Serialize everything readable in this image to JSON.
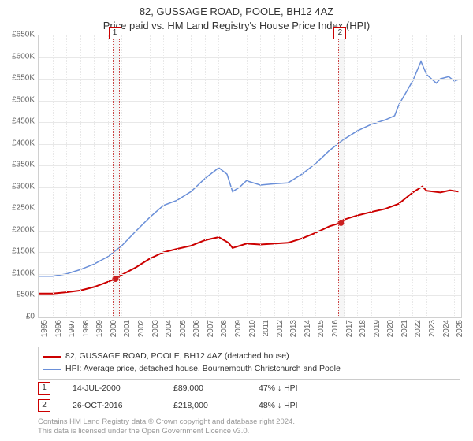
{
  "title_line1": "82, GUSSAGE ROAD, POOLE, BH12 4AZ",
  "title_line2": "Price paid vs. HM Land Registry's House Price Index (HPI)",
  "chart": {
    "type": "line",
    "background_color": "#ffffff",
    "grid_color": "#e8e8e8",
    "border_color": "#d0d0d0",
    "x": {
      "min": 1995,
      "max": 2025.5,
      "ticks": [
        1995,
        1996,
        1997,
        1998,
        1999,
        2000,
        2001,
        2002,
        2003,
        2004,
        2005,
        2006,
        2007,
        2008,
        2009,
        2010,
        2011,
        2012,
        2013,
        2014,
        2015,
        2016,
        2017,
        2018,
        2019,
        2020,
        2021,
        2022,
        2023,
        2024,
        2025
      ],
      "label_fontsize": 10,
      "label_color": "#666666",
      "label_rotation": -90
    },
    "y": {
      "min": 0,
      "max": 650000,
      "tick_step": 50000,
      "tick_labels": [
        "£0",
        "£50K",
        "£100K",
        "£150K",
        "£200K",
        "£250K",
        "£300K",
        "£350K",
        "£400K",
        "£450K",
        "£500K",
        "£550K",
        "£600K",
        "£650K"
      ],
      "label_fontsize": 10,
      "label_color": "#666666"
    },
    "series": [
      {
        "name": "82, GUSSAGE ROAD, POOLE, BH12 4AZ (detached house)",
        "color": "#cc0000",
        "line_width": 2,
        "data": [
          [
            1995,
            55000
          ],
          [
            1996,
            55000
          ],
          [
            1997,
            58000
          ],
          [
            1998,
            62000
          ],
          [
            1999,
            70000
          ],
          [
            2000,
            82000
          ],
          [
            2000.55,
            89000
          ],
          [
            2001,
            98000
          ],
          [
            2002,
            115000
          ],
          [
            2003,
            135000
          ],
          [
            2004,
            150000
          ],
          [
            2005,
            158000
          ],
          [
            2006,
            165000
          ],
          [
            2007,
            178000
          ],
          [
            2008,
            185000
          ],
          [
            2008.7,
            172000
          ],
          [
            2009,
            160000
          ],
          [
            2010,
            170000
          ],
          [
            2011,
            168000
          ],
          [
            2012,
            170000
          ],
          [
            2013,
            172000
          ],
          [
            2014,
            182000
          ],
          [
            2015,
            195000
          ],
          [
            2016,
            210000
          ],
          [
            2016.82,
            218000
          ],
          [
            2017,
            225000
          ],
          [
            2018,
            235000
          ],
          [
            2019,
            243000
          ],
          [
            2020,
            250000
          ],
          [
            2021,
            262000
          ],
          [
            2022,
            288000
          ],
          [
            2022.7,
            302000
          ],
          [
            2023,
            292000
          ],
          [
            2024,
            288000
          ],
          [
            2024.7,
            293000
          ],
          [
            2025.3,
            290000
          ]
        ]
      },
      {
        "name": "HPI: Average price, detached house, Bournemouth Christchurch and Poole",
        "color": "#6a8fd8",
        "line_width": 1.5,
        "data": [
          [
            1995,
            95000
          ],
          [
            1996,
            95000
          ],
          [
            1997,
            100000
          ],
          [
            1998,
            110000
          ],
          [
            1999,
            123000
          ],
          [
            2000,
            140000
          ],
          [
            2001,
            165000
          ],
          [
            2002,
            198000
          ],
          [
            2003,
            230000
          ],
          [
            2004,
            258000
          ],
          [
            2005,
            270000
          ],
          [
            2006,
            290000
          ],
          [
            2007,
            320000
          ],
          [
            2008,
            345000
          ],
          [
            2008.6,
            330000
          ],
          [
            2009,
            290000
          ],
          [
            2009.5,
            300000
          ],
          [
            2010,
            315000
          ],
          [
            2011,
            305000
          ],
          [
            2012,
            308000
          ],
          [
            2013,
            310000
          ],
          [
            2014,
            330000
          ],
          [
            2015,
            355000
          ],
          [
            2016,
            385000
          ],
          [
            2017,
            410000
          ],
          [
            2018,
            430000
          ],
          [
            2019,
            445000
          ],
          [
            2020,
            455000
          ],
          [
            2020.7,
            465000
          ],
          [
            2021,
            490000
          ],
          [
            2022,
            545000
          ],
          [
            2022.6,
            590000
          ],
          [
            2023,
            560000
          ],
          [
            2023.7,
            540000
          ],
          [
            2024,
            550000
          ],
          [
            2024.6,
            555000
          ],
          [
            2025,
            545000
          ],
          [
            2025.3,
            548000
          ]
        ]
      }
    ],
    "sale_markers": [
      {
        "id": "1",
        "x": 2000.55,
        "y": 89000,
        "date": "14-JUL-2000",
        "price": "£89,000",
        "delta": "47% ↓ HPI"
      },
      {
        "id": "2",
        "x": 2016.82,
        "y": 218000,
        "date": "26-OCT-2016",
        "price": "£218,000",
        "delta": "48% ↓ HPI"
      }
    ],
    "marker_band_width_years": 0.35,
    "marker_box_color": "#cc0000",
    "sale_dot_radius": 3.5
  },
  "legend": {
    "border_color": "#cccccc",
    "fontsize": 10.5
  },
  "footer": {
    "line1": "Contains HM Land Registry data © Crown copyright and database right 2024.",
    "line2": "This data is licensed under the Open Government Licence v3.0.",
    "color": "#999999",
    "fontsize": 9.5
  }
}
